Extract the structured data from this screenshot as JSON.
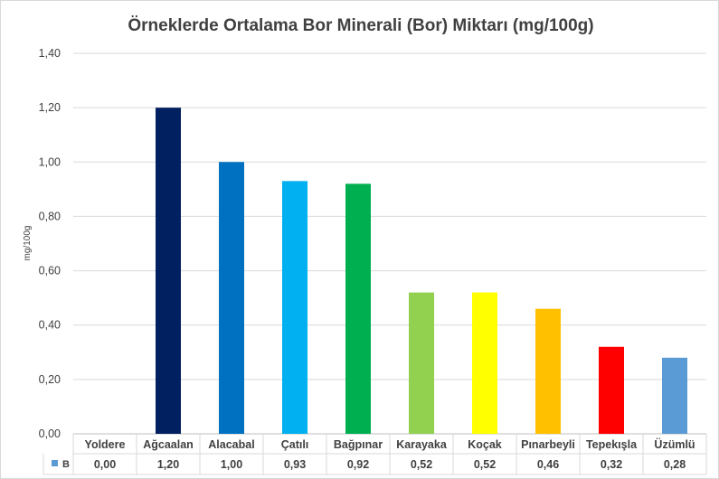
{
  "chart_data": {
    "type": "bar",
    "title": "Örneklerde Ortalama Bor Minerali (Bor)  Miktarı (mg/100g)",
    "ylabel": "mg/100g",
    "xlabel": "",
    "ylim": [
      0,
      1.4
    ],
    "yticks": [
      "0,00",
      "0,20",
      "0,40",
      "0,60",
      "0,80",
      "1,00",
      "1,20",
      "1,40"
    ],
    "grid": true,
    "categories": [
      "Yoldere",
      "Ağcaalan",
      "Alacabal",
      "Çatılı",
      "Bağpınar",
      "Karayaka",
      "Koçak",
      "Pınarbeyli",
      "Tepekışla",
      "Üzümlü"
    ],
    "series": [
      {
        "name": "B",
        "values": [
          0.0,
          1.2,
          1.0,
          0.93,
          0.92,
          0.52,
          0.52,
          0.46,
          0.32,
          0.28
        ],
        "value_labels": [
          "0,00",
          "1,20",
          "1,00",
          "0,93",
          "0,92",
          "0,52",
          "0,52",
          "0,46",
          "0,32",
          "0,28"
        ]
      }
    ],
    "bar_colors": [
      "#4472c4",
      "#002060",
      "#0070c0",
      "#00b0f0",
      "#00b050",
      "#92d050",
      "#ffff00",
      "#ffc000",
      "#ff0000",
      "#5b9bd5"
    ],
    "legend_key_color": "#5b9bd5",
    "data_table": true
  }
}
